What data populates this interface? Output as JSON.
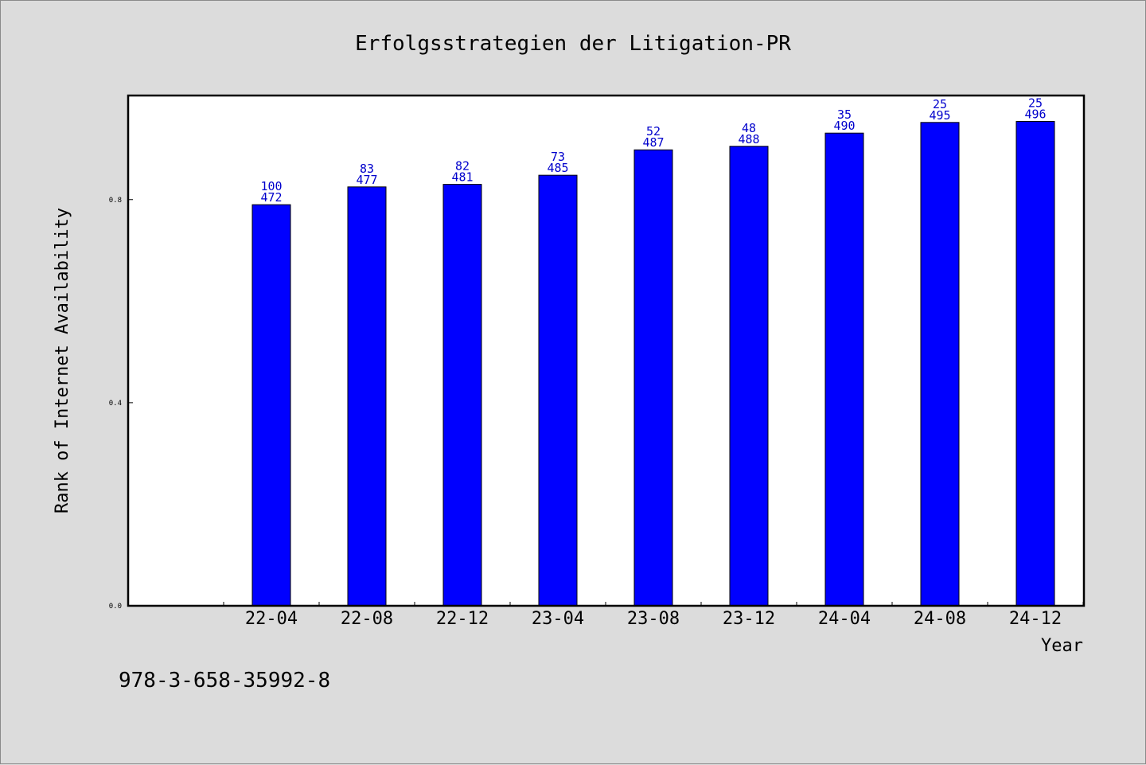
{
  "chart_data": {
    "type": "bar",
    "title": "Erfolgsstrategien der Litigation-PR",
    "xlabel": "Year",
    "ylabel": "Rank of Internet Availability",
    "categories": [
      "22-04",
      "22-08",
      "22-12",
      "23-04",
      "23-08",
      "23-12",
      "24-04",
      "24-08",
      "24-12"
    ],
    "values": [
      0.79,
      0.825,
      0.83,
      0.848,
      0.898,
      0.905,
      0.931,
      0.952,
      0.954
    ],
    "labels_top": [
      "100",
      "83",
      "82",
      "73",
      "52",
      "48",
      "35",
      "25",
      "25"
    ],
    "labels_bottom": [
      "472",
      "477",
      "481",
      "485",
      "487",
      "488",
      "490",
      "495",
      "496"
    ],
    "yticks": [
      {
        "value": 0.0,
        "label": "0.0"
      },
      {
        "value": 0.4,
        "label": "0.4"
      },
      {
        "value": 0.8,
        "label": "0.8"
      }
    ],
    "ylim": [
      0,
      1.005
    ],
    "bar_color": "#0000ff",
    "label_color": "#0000cc",
    "grid": false
  },
  "footer": {
    "isbn": "978-3-658-35992-8"
  }
}
